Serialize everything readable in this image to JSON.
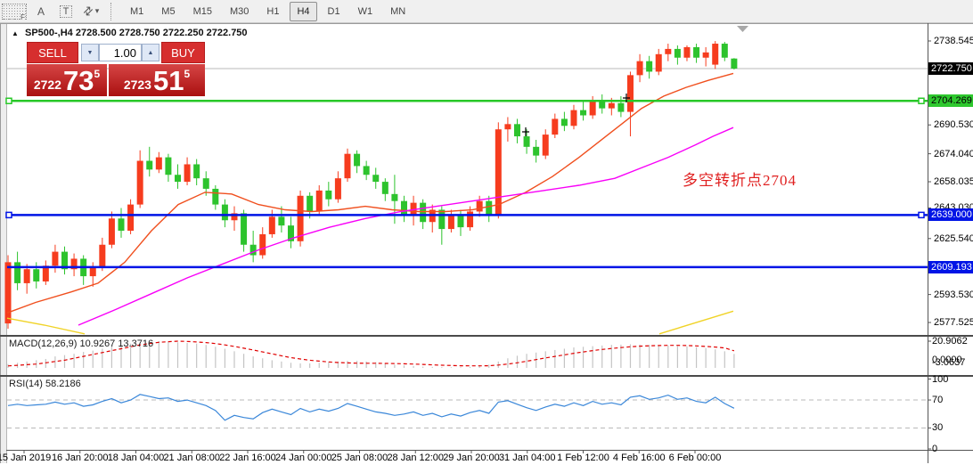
{
  "colors": {
    "candle_up": "#f63c1e",
    "candle_down": "#2dc32d",
    "hline_green": "#28c828",
    "hline_blue": "#0014e6",
    "current_price_line": "#b8b8b8",
    "ma_fast": "#f04f1e",
    "ma_slow": "#f800f8",
    "ma_long": "#f0d327",
    "macd_hist": "#c4c4c4",
    "macd_signal": "#e00000",
    "rsi_line": "#3a87d9",
    "panel_red": "#d62e2e"
  },
  "toolbar": {
    "tool_f": "F",
    "tool_a": "A",
    "tool_t": "T",
    "caret": "▾",
    "timeframes": [
      "M1",
      "M5",
      "M15",
      "M30",
      "H1",
      "H4",
      "D1",
      "W1",
      "MN"
    ],
    "active_timeframe": "H4"
  },
  "header": {
    "collapse": "▲",
    "symbol": "SP500-,H4",
    "ohlc": "2728.500 2728.750 2722.250 2722.750"
  },
  "trade_panel": {
    "sell": "SELL",
    "buy": "BUY",
    "lot": "1.00",
    "spin_down": "▼",
    "spin_up": "▲",
    "sell_price_small": "2722",
    "sell_price_big": "73",
    "sell_price_sup": "5",
    "buy_price_small": "2723",
    "buy_price_big": "51",
    "buy_price_sup": "5"
  },
  "annotation": "多空转折点2704",
  "price_axis": {
    "ticks": [
      {
        "label": "2738.545",
        "price": 2738.545
      },
      {
        "label": "2690.530",
        "price": 2690.53
      },
      {
        "label": "2674.040",
        "price": 2674.04
      },
      {
        "label": "2658.035",
        "price": 2658.035
      },
      {
        "label": "2643.030",
        "price": 2643.03
      },
      {
        "label": "2625.540",
        "price": 2625.54
      },
      {
        "label": "2593.530",
        "price": 2593.53
      },
      {
        "label": "2577.525",
        "price": 2577.525
      }
    ],
    "current_badge": {
      "label": "2722.750",
      "price": 2722.75
    },
    "line_badges": [
      {
        "label": "2704.269",
        "price": 2704.269,
        "style": "green"
      },
      {
        "label": "2639.000",
        "price": 2639.0,
        "style": "blue"
      },
      {
        "label": "2609.193",
        "price": 2609.193,
        "style": "blue"
      }
    ]
  },
  "date_axis": [
    "15 Jan 2019",
    "16 Jan 20:00",
    "18 Jan 04:00",
    "21 Jan 08:00",
    "22 Jan 16:00",
    "24 Jan 00:00",
    "25 Jan 08:00",
    "28 Jan 12:00",
    "29 Jan 20:00",
    "31 Jan 04:00",
    "1 Feb 12:00",
    "4 Feb 16:00",
    "6 Feb 00:00"
  ],
  "macd": {
    "name": "MACD(12,26,9)",
    "value_main": "10.9267",
    "value_signal": "13.3716",
    "scale_top": "20.9062",
    "scale_zero": "0.0000",
    "scale_min": "-3.0637",
    "hist": [
      3,
      4,
      5,
      6,
      7,
      9,
      10,
      11,
      12.5,
      13.5,
      15,
      17,
      18,
      19,
      20,
      20.5,
      20.9,
      20.5,
      20,
      19.5,
      19,
      18,
      16.5,
      15,
      13,
      11,
      9,
      7.5,
      6,
      5,
      4,
      3.5,
      3.5,
      4,
      4.5,
      5,
      5.5,
      5.5,
      5,
      4.5,
      3.5,
      2.5,
      2,
      1.5,
      1,
      0.8,
      0.6,
      0.5,
      0.5,
      0.8,
      1.5,
      2.5,
      5,
      7.5,
      9.5,
      11,
      12,
      13,
      14,
      15,
      16,
      16.5,
      17,
      17.5,
      18,
      18.2,
      18.5,
      18.3,
      18,
      17.8,
      17.5,
      17.2,
      16.8,
      16.2,
      15.5,
      14.5,
      13,
      10.9
    ],
    "signal": [
      1.5,
      2,
      2.5,
      3,
      4,
      5,
      6,
      7.5,
      9,
      10.5,
      12,
      13.5,
      15,
      16.5,
      18,
      19,
      20,
      20.5,
      20.9,
      20.7,
      20.3,
      19.8,
      19,
      18,
      16.8,
      15.4,
      14,
      12.5,
      11,
      9.5,
      8,
      7,
      6,
      5.3,
      4.7,
      4.2,
      3.9,
      3.7,
      3.6,
      3.6,
      3.5,
      3.4,
      3.2,
      3,
      2.7,
      2.4,
      2.1,
      1.9,
      1.7,
      1.6,
      1.6,
      1.7,
      2.2,
      3,
      4,
      5.2,
      6.5,
      7.8,
      9,
      10.2,
      11.4,
      12.5,
      13.5,
      14.4,
      15.2,
      15.9,
      16.5,
      17,
      17.3,
      17.5,
      17.6,
      17.6,
      17.5,
      17.2,
      16.8,
      16.3,
      15.6,
      13.37
    ]
  },
  "rsi": {
    "name": "RSI(14)",
    "value": "58.2186",
    "scale": [
      "100",
      "70",
      "30",
      "0"
    ],
    "levels": [
      70,
      30
    ],
    "values": [
      62,
      64,
      62,
      63,
      64,
      67,
      64,
      66,
      61,
      63,
      68,
      72,
      66,
      70,
      78,
      75,
      72,
      73,
      68,
      70,
      66,
      62,
      55,
      41,
      48,
      45,
      43,
      52,
      57,
      53,
      49,
      58,
      53,
      57,
      54,
      58,
      65,
      61,
      57,
      53,
      51,
      48,
      50,
      53,
      48,
      51,
      46,
      50,
      47,
      52,
      55,
      51,
      67,
      69,
      64,
      59,
      55,
      60,
      64,
      61,
      66,
      62,
      68,
      64,
      66,
      63,
      74,
      76,
      71,
      73,
      77,
      71,
      73,
      68,
      66,
      74,
      65,
      58.2
    ]
  },
  "chart_data": {
    "type": "candlestick",
    "symbol": "SP500-",
    "timeframe": "H4",
    "note": "OHLC values approximate, read from chart pixels; red = up, green = down (CN convention)",
    "price_range_visible": [
      2577.525,
      2738.545
    ],
    "candles": [
      [
        2577,
        2616,
        2574,
        2612
      ],
      [
        2612,
        2618,
        2596,
        2600
      ],
      [
        2600,
        2611,
        2594,
        2608
      ],
      [
        2608,
        2612,
        2597,
        2601
      ],
      [
        2601,
        2613,
        2599,
        2610
      ],
      [
        2610,
        2622,
        2606,
        2618
      ],
      [
        2618,
        2621,
        2605,
        2608
      ],
      [
        2608,
        2617,
        2604,
        2614
      ],
      [
        2614,
        2616,
        2599,
        2604
      ],
      [
        2604,
        2612,
        2598,
        2609
      ],
      [
        2609,
        2626,
        2607,
        2622
      ],
      [
        2622,
        2641,
        2620,
        2637
      ],
      [
        2637,
        2643,
        2626,
        2630
      ],
      [
        2630,
        2648,
        2628,
        2645
      ],
      [
        2645,
        2676,
        2643,
        2670
      ],
      [
        2670,
        2678,
        2661,
        2665
      ],
      [
        2665,
        2675,
        2663,
        2672
      ],
      [
        2672,
        2674,
        2658,
        2662
      ],
      [
        2662,
        2668,
        2654,
        2658
      ],
      [
        2658,
        2672,
        2656,
        2668
      ],
      [
        2668,
        2671,
        2656,
        2660
      ],
      [
        2660,
        2664,
        2650,
        2654
      ],
      [
        2654,
        2656,
        2642,
        2645
      ],
      [
        2645,
        2648,
        2632,
        2636
      ],
      [
        2636,
        2644,
        2630,
        2640
      ],
      [
        2640,
        2642,
        2618,
        2622
      ],
      [
        2622,
        2630,
        2612,
        2616
      ],
      [
        2616,
        2632,
        2614,
        2628
      ],
      [
        2628,
        2642,
        2626,
        2638
      ],
      [
        2638,
        2644,
        2629,
        2633
      ],
      [
        2633,
        2638,
        2620,
        2624
      ],
      [
        2624,
        2653,
        2621,
        2650
      ],
      [
        2650,
        2652,
        2637,
        2641
      ],
      [
        2641,
        2656,
        2639,
        2653
      ],
      [
        2653,
        2658,
        2644,
        2648
      ],
      [
        2648,
        2664,
        2646,
        2660
      ],
      [
        2660,
        2677,
        2658,
        2674
      ],
      [
        2674,
        2676,
        2663,
        2667
      ],
      [
        2667,
        2670,
        2659,
        2662
      ],
      [
        2662,
        2666,
        2654,
        2658
      ],
      [
        2658,
        2660,
        2647,
        2651
      ],
      [
        2651,
        2662,
        2634,
        2647
      ],
      [
        2647,
        2650,
        2635,
        2639
      ],
      [
        2639,
        2650,
        2633,
        2646
      ],
      [
        2646,
        2648,
        2631,
        2635
      ],
      [
        2635,
        2645,
        2629,
        2642
      ],
      [
        2642,
        2644,
        2622,
        2631
      ],
      [
        2631,
        2642,
        2629,
        2639
      ],
      [
        2639,
        2642,
        2627,
        2632
      ],
      [
        2632,
        2644,
        2630,
        2641
      ],
      [
        2641,
        2650,
        2638,
        2647
      ],
      [
        2647,
        2650,
        2635,
        2639
      ],
      [
        2639,
        2692,
        2637,
        2688
      ],
      [
        2688,
        2695,
        2681,
        2691
      ],
      [
        2691,
        2694,
        2680,
        2684
      ],
      [
        2684,
        2688,
        2674,
        2678
      ],
      [
        2678,
        2682,
        2669,
        2673
      ],
      [
        2673,
        2688,
        2671,
        2685
      ],
      [
        2685,
        2697,
        2683,
        2694
      ],
      [
        2694,
        2698,
        2687,
        2690
      ],
      [
        2690,
        2702,
        2688,
        2699
      ],
      [
        2699,
        2704,
        2693,
        2696
      ],
      [
        2696,
        2707,
        2694,
        2704
      ],
      [
        2704,
        2708,
        2697,
        2700
      ],
      [
        2700,
        2706,
        2696,
        2703
      ],
      [
        2703,
        2707,
        2695,
        2698
      ],
      [
        2698,
        2721,
        2684,
        2719
      ],
      [
        2719,
        2731,
        2715,
        2727
      ],
      [
        2727,
        2730,
        2717,
        2721
      ],
      [
        2721,
        2734,
        2719,
        2731
      ],
      [
        2731,
        2737,
        2727,
        2734
      ],
      [
        2734,
        2736,
        2725,
        2729
      ],
      [
        2729,
        2736,
        2727,
        2735
      ],
      [
        2735,
        2737,
        2726,
        2729
      ],
      [
        2729,
        2735,
        2724,
        2732
      ],
      [
        2725,
        2738.5,
        2722.5,
        2737
      ],
      [
        2737,
        2738,
        2727,
        2729
      ],
      [
        2728.5,
        2728.75,
        2722.25,
        2722.75
      ]
    ],
    "hlines": [
      {
        "price": 2704.269,
        "color": "#28c828",
        "width": 2.5,
        "handles": true
      },
      {
        "price": 2639.0,
        "color": "#0014e6",
        "width": 2.5,
        "handles": true
      },
      {
        "price": 2609.193,
        "color": "#0014e6",
        "width": 2.5,
        "handles": false
      }
    ],
    "current_price_line": 2722.75,
    "ma_lines": [
      {
        "name": "ma-fast-orange",
        "color": "#f04f1e",
        "points": [
          [
            8,
            2583
          ],
          [
            40,
            2589
          ],
          [
            80,
            2595
          ],
          [
            110,
            2600
          ],
          [
            140,
            2612
          ],
          [
            170,
            2630
          ],
          [
            200,
            2645
          ],
          [
            230,
            2652
          ],
          [
            260,
            2651
          ],
          [
            290,
            2645
          ],
          [
            320,
            2642
          ],
          [
            350,
            2641
          ],
          [
            380,
            2642
          ],
          [
            410,
            2644
          ],
          [
            440,
            2642
          ],
          [
            470,
            2641
          ],
          [
            500,
            2641
          ],
          [
            530,
            2642
          ],
          [
            560,
            2645
          ],
          [
            590,
            2652
          ],
          [
            620,
            2661
          ],
          [
            650,
            2672
          ],
          [
            680,
            2684
          ],
          [
            700,
            2692
          ],
          [
            720,
            2700
          ],
          [
            745,
            2707
          ],
          [
            770,
            2712
          ],
          [
            795,
            2716
          ],
          [
            823,
            2720
          ]
        ]
      },
      {
        "name": "ma-slow-magenta",
        "color": "#f800f8",
        "points": [
          [
            88,
            2576
          ],
          [
            130,
            2585
          ],
          [
            170,
            2594
          ],
          [
            210,
            2603
          ],
          [
            250,
            2611
          ],
          [
            290,
            2619
          ],
          [
            330,
            2626
          ],
          [
            370,
            2632
          ],
          [
            410,
            2637
          ],
          [
            450,
            2641
          ],
          [
            490,
            2644
          ],
          [
            530,
            2647
          ],
          [
            570,
            2650
          ],
          [
            610,
            2653
          ],
          [
            650,
            2656
          ],
          [
            690,
            2660
          ],
          [
            720,
            2666
          ],
          [
            750,
            2672
          ],
          [
            780,
            2679
          ],
          [
            800,
            2684
          ],
          [
            823,
            2689
          ]
        ]
      },
      {
        "name": "ma-long-yellow-left",
        "color": "#f0d327",
        "points": [
          [
            8,
            2580
          ],
          [
            50,
            2576
          ],
          [
            95,
            2571
          ]
        ]
      },
      {
        "name": "ma-long-yellow-right",
        "color": "#f0d327",
        "points": [
          [
            740,
            2571
          ],
          [
            823,
            2584
          ]
        ]
      }
    ],
    "cross_markers": [
      [
        590,
        148
      ],
      [
        703,
        110
      ]
    ]
  }
}
